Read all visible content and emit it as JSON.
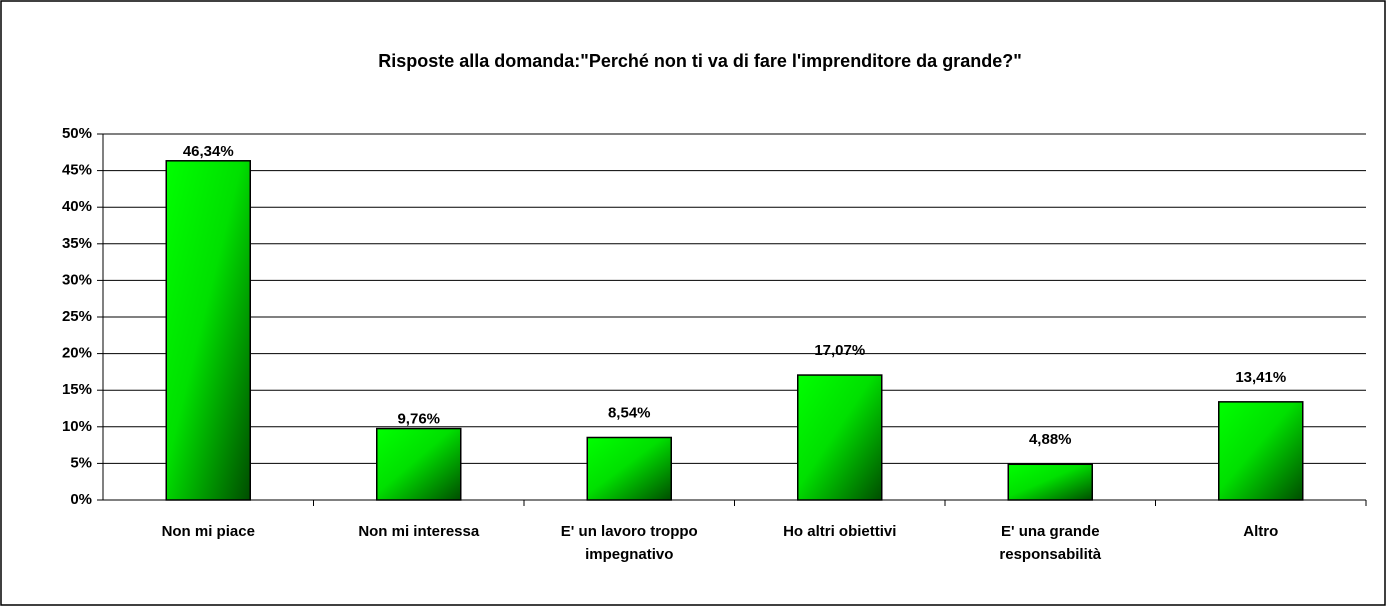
{
  "chart_data": {
    "type": "bar",
    "title": "Risposte alla domanda:\"Perché non ti va di fare l'imprenditore da grande?\"",
    "categories": [
      "Non mi piace",
      "Non mi interessa",
      "E' un lavoro troppo impegnativo",
      "Ho altri obiettivi",
      "E' una grande responsabilità",
      "Altro"
    ],
    "values": [
      46.34,
      9.76,
      8.54,
      17.07,
      4.88,
      13.41
    ],
    "value_labels": [
      "46,34%",
      "9,76%",
      "8,54%",
      "17,07%",
      "4,88%",
      "13,41%"
    ],
    "color": "#00ff00",
    "ylim": [
      0,
      50
    ],
    "yticks": [
      {
        "value": 0,
        "label": "0%"
      },
      {
        "value": 5,
        "label": "5%"
      },
      {
        "value": 10,
        "label": "10%"
      },
      {
        "value": 15,
        "label": "15%"
      },
      {
        "value": 20,
        "label": "20%"
      },
      {
        "value": 25,
        "label": "25%"
      },
      {
        "value": 30,
        "label": "30%"
      },
      {
        "value": 35,
        "label": "35%"
      },
      {
        "value": 40,
        "label": "40%"
      },
      {
        "value": 45,
        "label": "45%"
      },
      {
        "value": 50,
        "label": "50%"
      }
    ],
    "grid": true
  }
}
